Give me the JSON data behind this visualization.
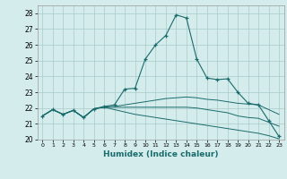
{
  "xlabel": "Humidex (Indice chaleur)",
  "bg_color": "#d4ecec",
  "grid_color": "#a8cccc",
  "line_color": "#1a6b6b",
  "xlim": [
    -0.5,
    23.5
  ],
  "ylim": [
    20,
    28.5
  ],
  "xticks": [
    0,
    1,
    2,
    3,
    4,
    5,
    6,
    7,
    8,
    9,
    10,
    11,
    12,
    13,
    14,
    15,
    16,
    17,
    18,
    19,
    20,
    21,
    22,
    23
  ],
  "yticks": [
    20,
    21,
    22,
    23,
    24,
    25,
    26,
    27,
    28
  ],
  "line1_x": [
    0,
    1,
    2,
    3,
    4,
    5,
    6,
    7,
    8,
    9,
    10,
    11,
    12,
    13,
    14,
    15,
    16,
    17,
    18,
    19,
    20,
    21,
    22,
    23
  ],
  "line1_y": [
    21.5,
    21.9,
    21.6,
    21.85,
    21.4,
    21.95,
    22.1,
    22.2,
    23.2,
    23.25,
    25.1,
    26.0,
    26.6,
    27.9,
    27.7,
    25.1,
    23.9,
    23.8,
    23.85,
    23.0,
    22.3,
    22.2,
    21.2,
    20.2
  ],
  "line2_x": [
    0,
    1,
    2,
    3,
    4,
    5,
    6,
    7,
    8,
    9,
    10,
    11,
    12,
    13,
    14,
    15,
    16,
    17,
    18,
    19,
    20,
    21,
    22,
    23
  ],
  "line2_y": [
    21.5,
    21.9,
    21.6,
    21.85,
    21.4,
    21.95,
    22.05,
    22.1,
    22.2,
    22.3,
    22.4,
    22.5,
    22.6,
    22.65,
    22.7,
    22.65,
    22.55,
    22.5,
    22.4,
    22.3,
    22.25,
    22.2,
    21.9,
    21.6
  ],
  "line3_x": [
    0,
    1,
    2,
    3,
    4,
    5,
    6,
    7,
    8,
    9,
    10,
    11,
    12,
    13,
    14,
    15,
    16,
    17,
    18,
    19,
    20,
    21,
    22,
    23
  ],
  "line3_y": [
    21.5,
    21.9,
    21.6,
    21.85,
    21.4,
    21.95,
    22.05,
    22.05,
    22.05,
    22.05,
    22.05,
    22.05,
    22.05,
    22.05,
    22.05,
    22.0,
    21.9,
    21.8,
    21.7,
    21.5,
    21.4,
    21.35,
    21.1,
    20.85
  ],
  "line4_x": [
    0,
    1,
    2,
    3,
    4,
    5,
    6,
    7,
    8,
    9,
    10,
    11,
    12,
    13,
    14,
    15,
    16,
    17,
    18,
    19,
    20,
    21,
    22,
    23
  ],
  "line4_y": [
    21.5,
    21.9,
    21.6,
    21.85,
    21.4,
    21.95,
    22.05,
    21.9,
    21.75,
    21.6,
    21.5,
    21.4,
    21.3,
    21.2,
    21.1,
    21.0,
    20.9,
    20.8,
    20.7,
    20.6,
    20.5,
    20.4,
    20.25,
    20.05
  ]
}
